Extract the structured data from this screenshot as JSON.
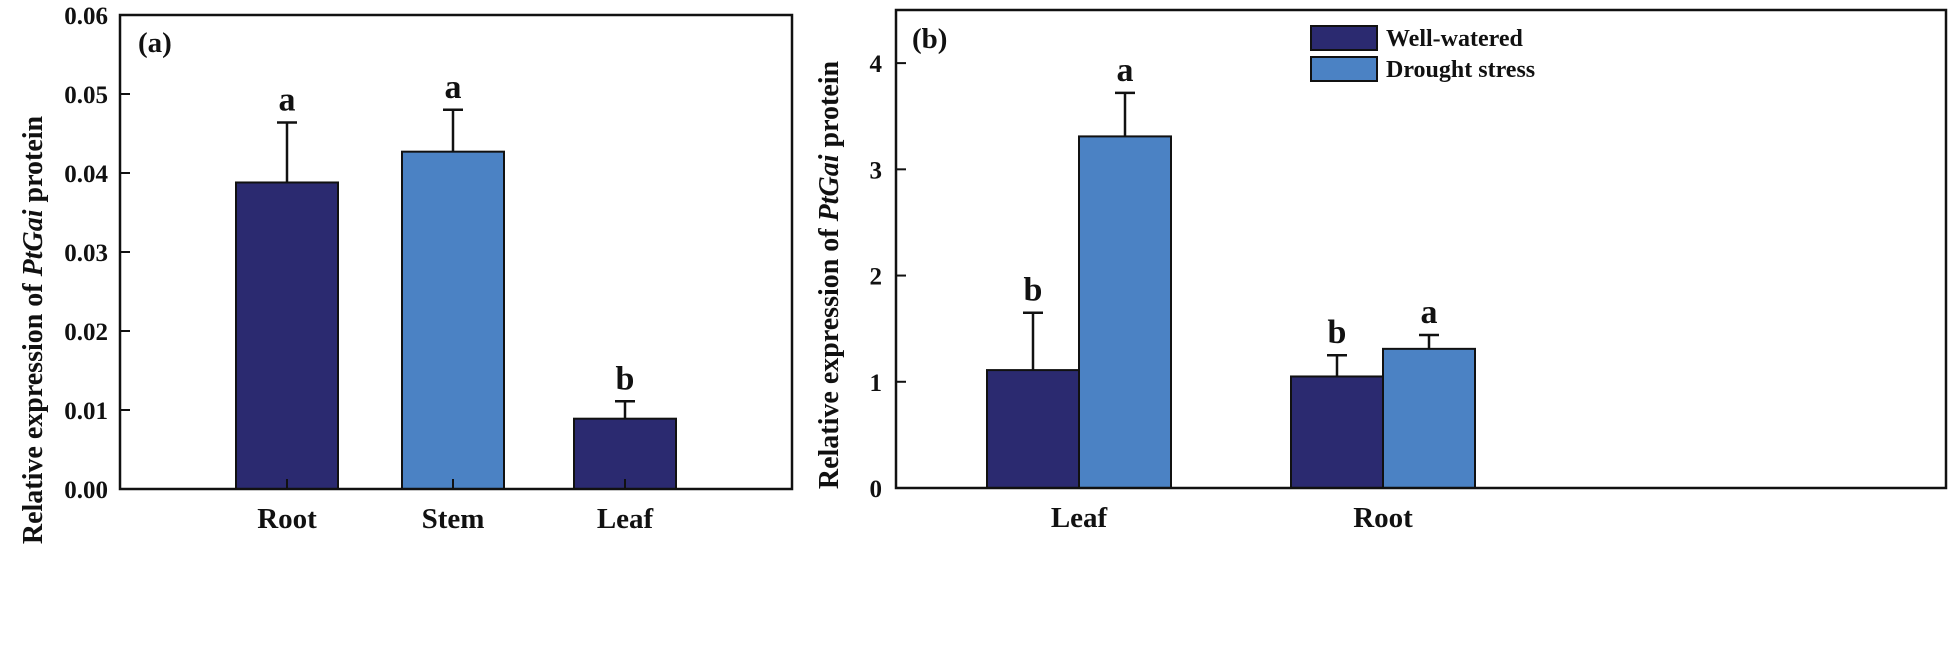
{
  "chart_data": [
    {
      "type": "bar",
      "panel_label": "(a)",
      "ylabel_pre": "Relative expression of ",
      "ylabel_gene": "PtGai",
      "ylabel_post": " protein",
      "categories": [
        "Root",
        "Stem",
        "Leaf"
      ],
      "values": [
        0.0388,
        0.0427,
        0.0089
      ],
      "errors": [
        0.0076,
        0.0053,
        0.0022
      ],
      "letters": [
        "a",
        "a",
        "b"
      ],
      "bar_colors": [
        "#2b2a70",
        "#4b82c4",
        "#2b2a70"
      ],
      "ylim": [
        0,
        0.06
      ],
      "yticks": [
        0,
        0.01,
        0.02,
        0.03,
        0.04,
        0.05,
        0.06
      ],
      "ytick_labels": [
        "0.00",
        "0.01",
        "0.02",
        "0.03",
        "0.04",
        "0.05",
        "0.06"
      ]
    },
    {
      "type": "bar",
      "panel_label": "(b)",
      "ylabel_pre": "Relative expression of ",
      "ylabel_gene": "PtGai",
      "ylabel_post": " protein",
      "categories": [
        "Leaf",
        "Root"
      ],
      "series": [
        {
          "name": "Well-watered",
          "color": "#2b2a70",
          "values": [
            1.11,
            1.05
          ],
          "errors": [
            0.54,
            0.2
          ],
          "letters": [
            "b",
            "b"
          ]
        },
        {
          "name": "Drought stress",
          "color": "#4b82c4",
          "values": [
            3.31,
            1.31
          ],
          "errors": [
            0.41,
            0.13
          ],
          "letters": [
            "a",
            "a"
          ]
        }
      ],
      "legend_position": "top-right",
      "ylim": [
        0,
        4.5
      ],
      "yticks": [
        0,
        1,
        2,
        3,
        4
      ],
      "ytick_labels": [
        "0",
        "1",
        "2",
        "3",
        "4"
      ]
    }
  ]
}
